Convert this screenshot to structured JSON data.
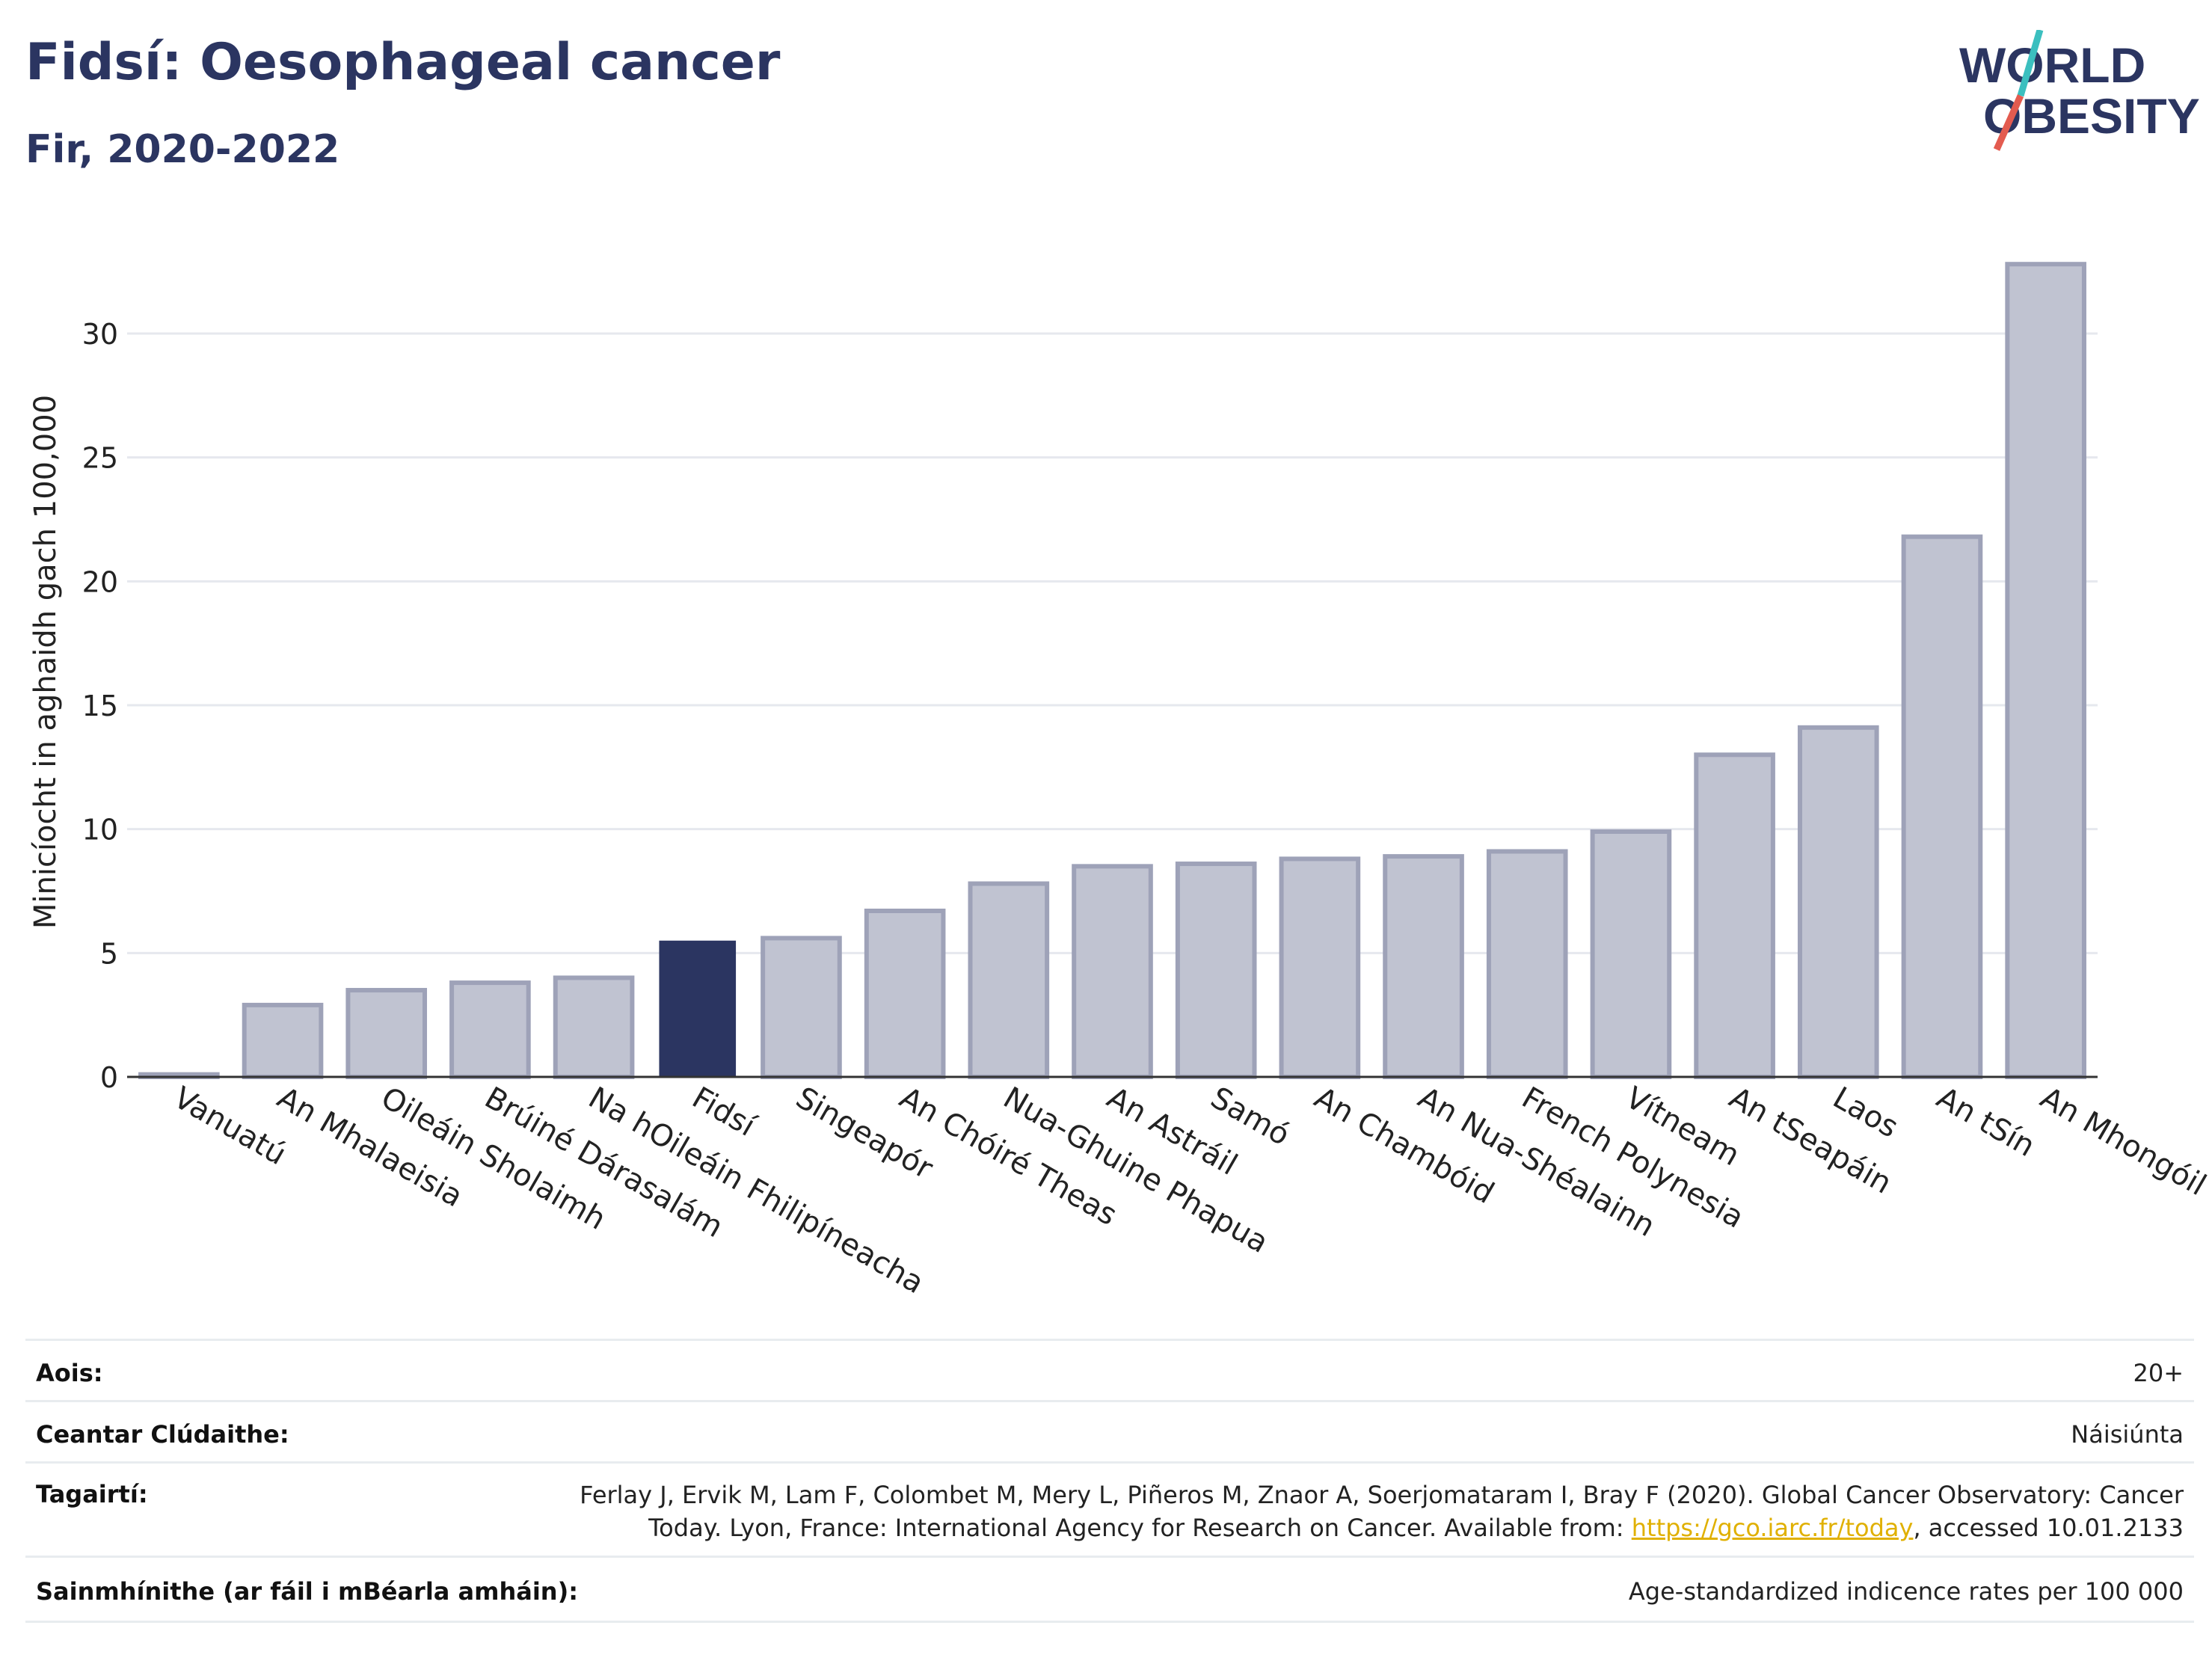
{
  "header": {
    "title": "Fidsí: Oesophageal cancer",
    "subtitle": "Fir, 2020-2022"
  },
  "logo": {
    "line1": "WORLD",
    "line2": "OBESITY",
    "colors": {
      "text": "#2b3561",
      "slash_teal": "#3bbfbf",
      "slash_red": "#e35b4f"
    }
  },
  "chart_data": {
    "type": "bar",
    "ylabel": "Minicíocht in aghaidh gach 100,000",
    "ylim": [
      0,
      33.5
    ],
    "yticks": [
      0,
      5,
      10,
      15,
      20,
      25,
      30
    ],
    "grid": true,
    "highlight": "Fidsí",
    "colors": {
      "highlight": "#2b3561",
      "bar": "#c0c3d1",
      "bar_border": "#9ea2b8"
    },
    "categories": [
      "Vanuatú",
      "An Mhalaeisia",
      "Oileáin Sholaimh",
      "Brúiné Dárasalám",
      "Na hOileáin Fhilipíneacha",
      "Fidsí",
      "Singeapór",
      "An Chóiré Theas",
      "Nua-Ghuine Phapua",
      "An Astráil",
      "Samó",
      "An Chambóid",
      "An Nua-Shéalainn",
      "French Polynesia",
      "Vítneam",
      "An tSeapáin",
      "Laos",
      "An tSín",
      "An Mhongóil"
    ],
    "values": [
      0.1,
      2.9,
      3.5,
      3.8,
      4.0,
      5.5,
      5.6,
      6.7,
      7.8,
      8.5,
      8.6,
      8.8,
      8.9,
      9.1,
      9.9,
      13.0,
      14.1,
      21.8,
      32.8
    ]
  },
  "meta": {
    "age_label": "Aois:",
    "age_value": "20+",
    "area_label": "Ceantar Clúdaithe:",
    "area_value": "Náisiúnta",
    "refs_label": "Tagairtí:",
    "refs_line1": "Ferlay J, Ervik M, Lam F, Colombet M, Mery L, Piñeros M, Znaor A, Soerjomataram I, Bray F (2020). Global Cancer Observatory: Cancer",
    "refs_line2_pre": "Today. Lyon, France: International Agency for Research on Cancer. Available from: ",
    "refs_link": "https://gco.iarc.fr/today",
    "refs_line2_post": ", accessed 10.01.2133",
    "defs_label": "Sainmhínithe (ar fáil i mBéarla amháin):",
    "defs_value": "Age-standardized indicence rates per 100 000"
  }
}
